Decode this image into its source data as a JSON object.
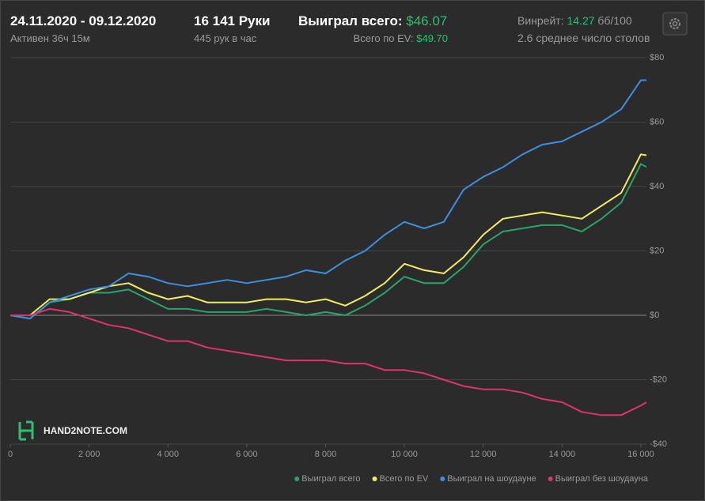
{
  "header": {
    "dates": "24.11.2020 - 09.12.2020",
    "active": "Активен 36ч 15м",
    "hands": "16 141 Руки",
    "hands_per_hour": "445 рук в час",
    "won_label": "Выиграл всего:",
    "won_value": "$46.07",
    "ev_label": "Всего по EV:",
    "ev_value": "$49.70",
    "winrate_label": "Винрейт:",
    "winrate_value": "14.27",
    "winrate_unit": "бб/100",
    "tables": "2.6 среднее число столов"
  },
  "logo": "HAND2NOTE.COM",
  "chart_data": {
    "type": "line",
    "x": [
      0,
      500,
      1000,
      1500,
      2000,
      2500,
      3000,
      3500,
      4000,
      4500,
      5000,
      5500,
      6000,
      6500,
      7000,
      7500,
      8000,
      8500,
      9000,
      9500,
      10000,
      10500,
      11000,
      11500,
      12000,
      12500,
      13000,
      13500,
      14000,
      14500,
      15000,
      15500,
      16000,
      16141
    ],
    "series": [
      {
        "name": "Выиграл всего",
        "color": "#27a56a",
        "values": [
          0,
          -1,
          4,
          5,
          7,
          7,
          8,
          5,
          2,
          2,
          1,
          1,
          1,
          2,
          1,
          0,
          1,
          0,
          3,
          7,
          12,
          10,
          10,
          15,
          22,
          26,
          27,
          28,
          28,
          26,
          30,
          35,
          47,
          46.07
        ]
      },
      {
        "name": "Всего по EV",
        "color": "#f2ee5c",
        "values": [
          0,
          0,
          5,
          5,
          7,
          9,
          10,
          7,
          5,
          6,
          4,
          4,
          4,
          5,
          5,
          4,
          5,
          3,
          6,
          10,
          16,
          14,
          13,
          18,
          25,
          30,
          31,
          32,
          31,
          30,
          34,
          38,
          50,
          49.7
        ]
      },
      {
        "name": "Выиграл на шоудауне",
        "color": "#3d8fe0",
        "values": [
          0,
          -1,
          4,
          6,
          8,
          9,
          13,
          12,
          10,
          9,
          10,
          11,
          10,
          11,
          12,
          14,
          13,
          17,
          20,
          25,
          29,
          27,
          29,
          39,
          43,
          46,
          50,
          53,
          54,
          57,
          60,
          64,
          73,
          73
        ]
      },
      {
        "name": "Выиграл без шоудауна",
        "color": "#e0336f",
        "values": [
          0,
          0,
          2,
          1,
          -1,
          -3,
          -4,
          -6,
          -8,
          -8,
          -10,
          -11,
          -12,
          -13,
          -14,
          -14,
          -14,
          -15,
          -15,
          -17,
          -17,
          -18,
          -20,
          -22,
          -23,
          -23,
          -24,
          -26,
          -27,
          -30,
          -31,
          -31,
          -28,
          -27
        ]
      }
    ],
    "xlim": [
      0,
      16141
    ],
    "ylim": [
      -40,
      80
    ],
    "xticks": [
      0,
      {
        "value": 2000,
        "label": "2 000"
      },
      {
        "value": 4000,
        "label": "4 000"
      },
      {
        "value": 6000,
        "label": "6 000"
      },
      {
        "value": 8000,
        "label": "8 000"
      },
      {
        "value": 10000,
        "label": "10 000"
      },
      {
        "value": 12000,
        "label": "12 000"
      },
      {
        "value": 14000,
        "label": "14 000"
      },
      {
        "value": 16000,
        "label": "16 000"
      }
    ],
    "yticks": [
      {
        "value": -40,
        "label": "-$40"
      },
      {
        "value": -20,
        "label": "-$20"
      },
      {
        "value": 0,
        "label": "$0"
      },
      {
        "value": 20,
        "label": "$20"
      },
      {
        "value": 40,
        "label": "$40"
      },
      {
        "value": 60,
        "label": "$60"
      },
      {
        "value": 80,
        "label": "$80"
      }
    ],
    "grid": true,
    "legend": "bottom-right"
  }
}
